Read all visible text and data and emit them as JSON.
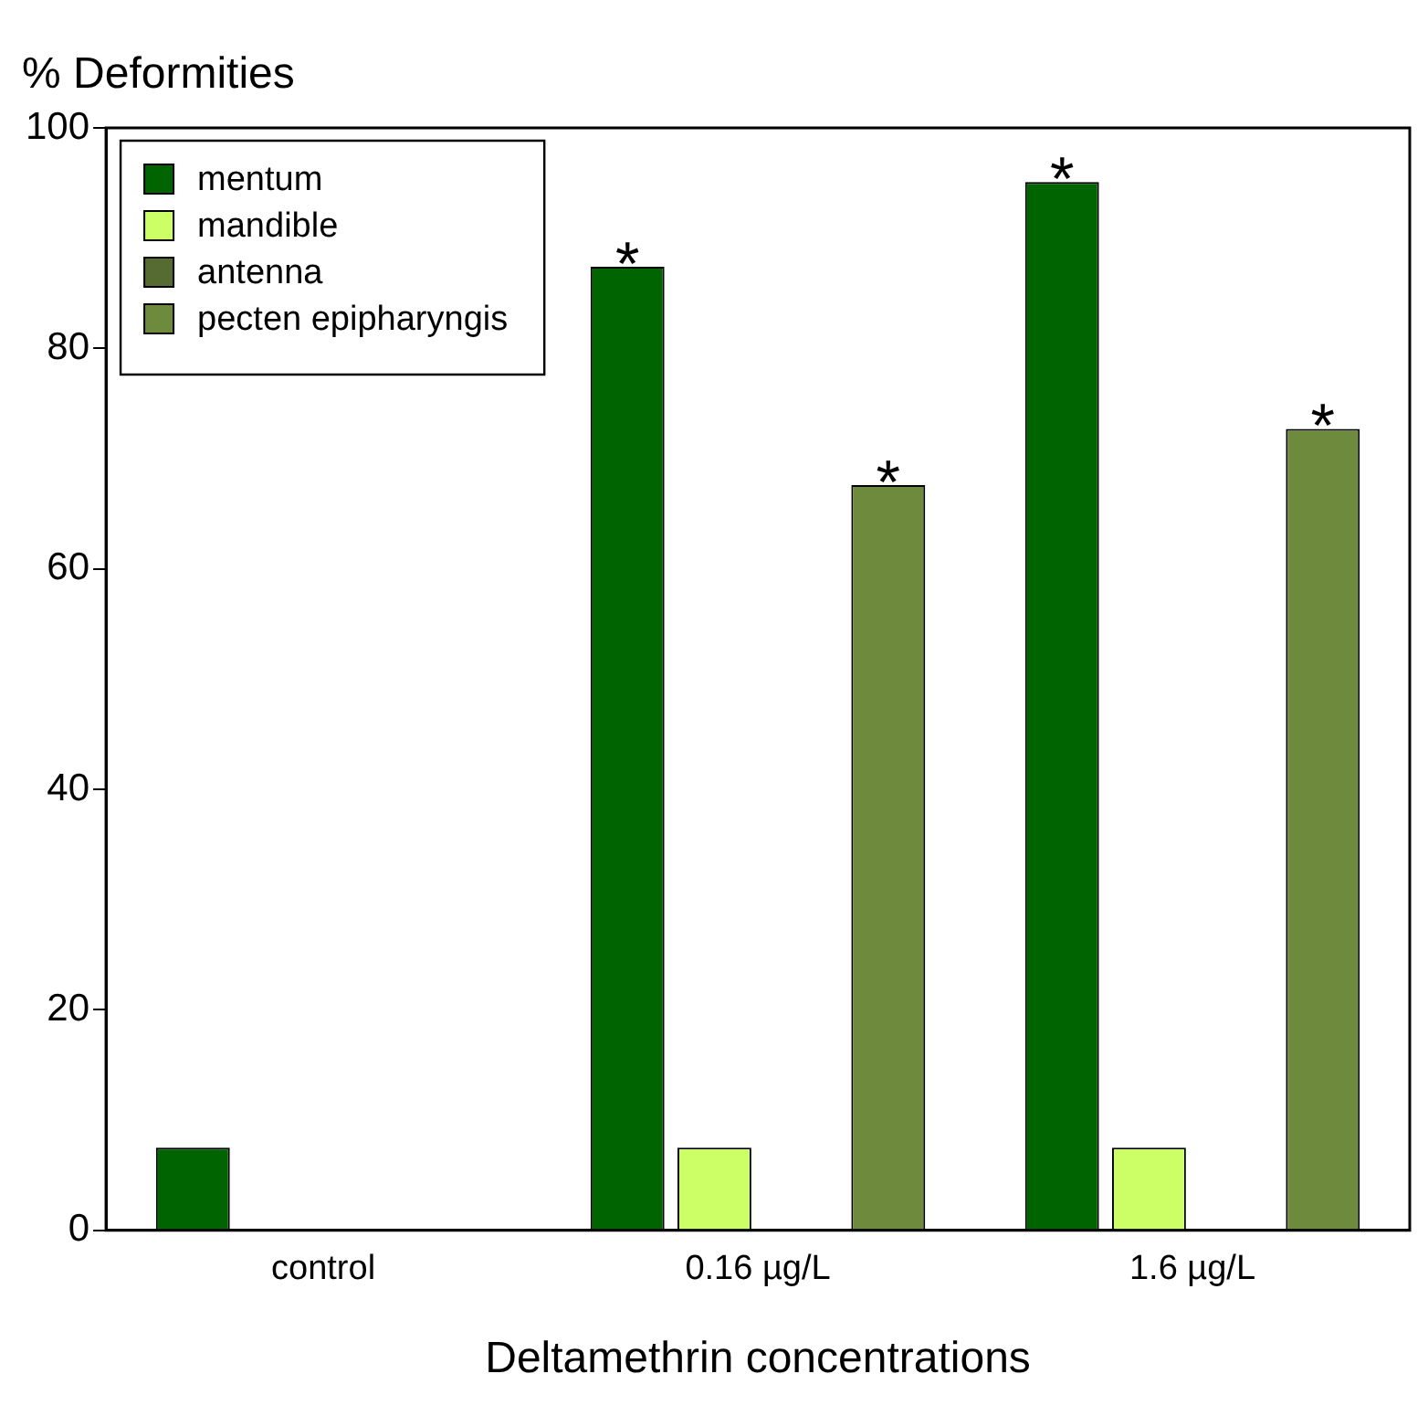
{
  "chart_data": {
    "type": "bar",
    "ylabel": "% Deformities",
    "xlabel": "Deltamethrin concentrations",
    "categories": [
      "control",
      "0.16 µg/L",
      "1.6 µg/L"
    ],
    "series": [
      {
        "name": "mentum",
        "color": "#006400",
        "values": [
          7.5,
          87.4,
          95.1
        ]
      },
      {
        "name": "mandible",
        "color": "#ccff66",
        "values": [
          0,
          7.5,
          7.5
        ]
      },
      {
        "name": "antenna",
        "color": "#556b2f",
        "values": [
          0,
          0,
          0
        ]
      },
      {
        "name": "pecten epipharyngis",
        "color": "#6e8b3d",
        "values": [
          0,
          67.6,
          72.7
        ]
      }
    ],
    "ylim": [
      0,
      100
    ],
    "yticks": [
      0,
      20,
      40,
      60,
      80,
      100
    ],
    "grid": false,
    "legend": "top left",
    "annotations": [
      "*",
      "*",
      "*",
      "*"
    ]
  }
}
